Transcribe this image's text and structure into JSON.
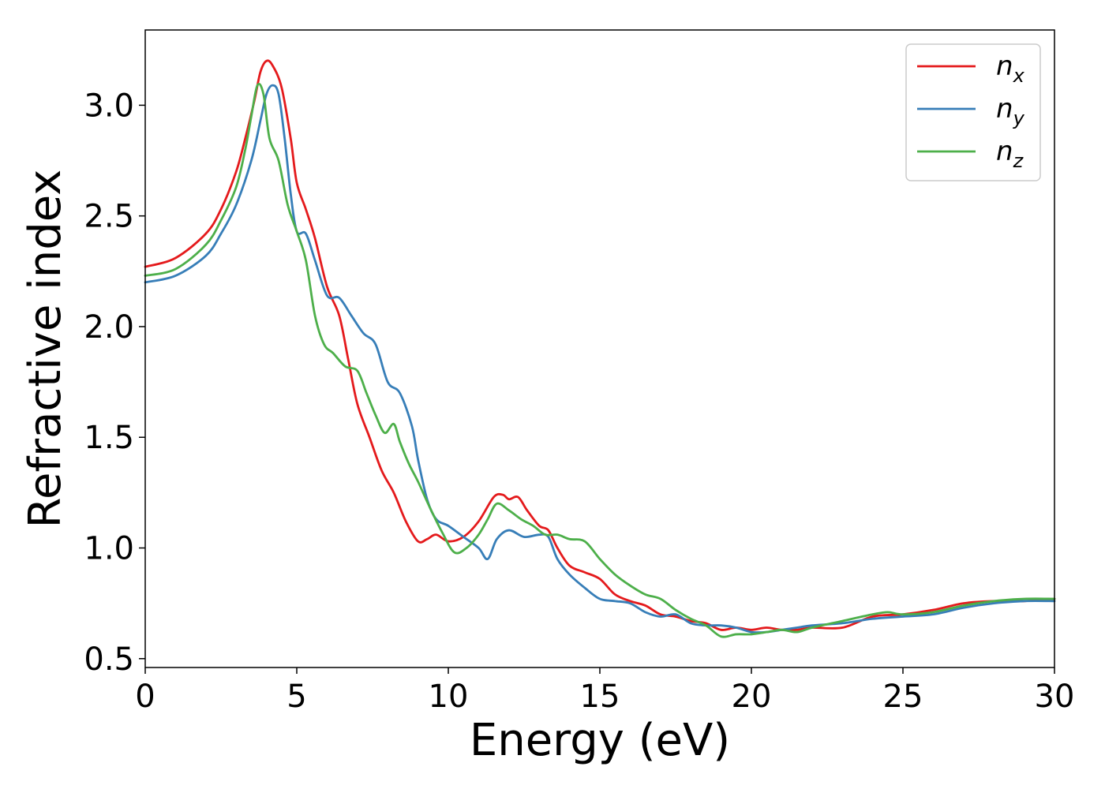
{
  "chart_data": {
    "type": "line",
    "title": "",
    "xlabel": "Energy (eV)",
    "ylabel": "Refractive index",
    "xlim": [
      0,
      30
    ],
    "ylim": [
      0.46,
      3.34
    ],
    "xticks": [
      0,
      5,
      10,
      15,
      20,
      25,
      30
    ],
    "xtick_labels": [
      "0",
      "5",
      "10",
      "15",
      "20",
      "25",
      "30"
    ],
    "yticks": [
      0.5,
      1.0,
      1.5,
      2.0,
      2.5,
      3.0
    ],
    "ytick_labels": [
      "0.5",
      "1.0",
      "1.5",
      "2.0",
      "2.5",
      "3.0"
    ],
    "grid": false,
    "legend_position": "top-right",
    "series": [
      {
        "name": "n_x",
        "legend_main": "n",
        "legend_sub": "x",
        "color": "#e41a1c",
        "x": [
          0,
          1,
          2,
          2.5,
          3,
          3.3,
          3.6,
          3.8,
          4.0,
          4.2,
          4.5,
          4.8,
          5.0,
          5.3,
          5.6,
          6.0,
          6.4,
          6.7,
          7.0,
          7.4,
          7.8,
          8.2,
          8.6,
          9.0,
          9.3,
          9.6,
          10.0,
          10.5,
          11.0,
          11.5,
          11.8,
          12.0,
          12.3,
          12.6,
          13.0,
          13.3,
          13.6,
          14.0,
          14.5,
          15.0,
          15.5,
          16.0,
          16.5,
          17.0,
          17.5,
          18.0,
          18.5,
          19.0,
          19.5,
          20.0,
          20.5,
          21.0,
          21.5,
          22.0,
          23.0,
          24.0,
          25.0,
          26.0,
          27.0,
          28.0,
          29.0,
          30.0
        ],
        "y": [
          2.27,
          2.31,
          2.42,
          2.53,
          2.7,
          2.85,
          3.02,
          3.15,
          3.2,
          3.18,
          3.08,
          2.85,
          2.65,
          2.53,
          2.4,
          2.18,
          2.05,
          1.85,
          1.65,
          1.5,
          1.35,
          1.25,
          1.12,
          1.03,
          1.04,
          1.06,
          1.03,
          1.05,
          1.12,
          1.23,
          1.24,
          1.22,
          1.23,
          1.17,
          1.1,
          1.08,
          1.0,
          0.92,
          0.89,
          0.86,
          0.79,
          0.76,
          0.74,
          0.7,
          0.69,
          0.67,
          0.66,
          0.63,
          0.64,
          0.63,
          0.64,
          0.63,
          0.63,
          0.64,
          0.64,
          0.69,
          0.7,
          0.72,
          0.75,
          0.76,
          0.76,
          0.77
        ]
      },
      {
        "name": "n_y",
        "legend_main": "n",
        "legend_sub": "y",
        "color": "#377eb8",
        "x": [
          0,
          1,
          2,
          2.5,
          3,
          3.5,
          3.8,
          4.0,
          4.2,
          4.4,
          4.6,
          4.8,
          5.0,
          5.3,
          5.6,
          6.0,
          6.4,
          6.8,
          7.2,
          7.6,
          8.0,
          8.4,
          8.8,
          9.0,
          9.3,
          9.6,
          10.0,
          10.5,
          11.0,
          11.3,
          11.6,
          12.0,
          12.5,
          13.0,
          13.3,
          13.6,
          14.0,
          14.5,
          15.0,
          15.5,
          16.0,
          16.5,
          17.0,
          17.5,
          18.0,
          18.5,
          19.0,
          19.5,
          20.0,
          20.5,
          21.0,
          21.5,
          22.0,
          23.0,
          24.0,
          25.0,
          26.0,
          27.0,
          28.0,
          29.0,
          30.0
        ],
        "y": [
          2.2,
          2.23,
          2.32,
          2.42,
          2.55,
          2.75,
          2.93,
          3.05,
          3.09,
          3.05,
          2.85,
          2.6,
          2.43,
          2.42,
          2.3,
          2.14,
          2.13,
          2.05,
          1.97,
          1.92,
          1.75,
          1.7,
          1.55,
          1.4,
          1.22,
          1.13,
          1.1,
          1.05,
          1.0,
          0.95,
          1.04,
          1.08,
          1.05,
          1.06,
          1.05,
          0.95,
          0.88,
          0.82,
          0.77,
          0.76,
          0.75,
          0.71,
          0.69,
          0.7,
          0.66,
          0.65,
          0.65,
          0.64,
          0.62,
          0.62,
          0.63,
          0.64,
          0.65,
          0.66,
          0.68,
          0.69,
          0.7,
          0.73,
          0.75,
          0.76,
          0.76
        ]
      },
      {
        "name": "n_z",
        "legend_main": "n",
        "legend_sub": "z",
        "color": "#4daf4a",
        "x": [
          0,
          1,
          2,
          2.5,
          3,
          3.3,
          3.5,
          3.7,
          3.9,
          4.1,
          4.4,
          4.7,
          5.0,
          5.3,
          5.6,
          5.9,
          6.2,
          6.6,
          7.0,
          7.3,
          7.6,
          7.9,
          8.2,
          8.4,
          8.7,
          9.0,
          9.4,
          9.8,
          10.2,
          10.6,
          11.0,
          11.3,
          11.6,
          12.0,
          12.4,
          12.8,
          13.2,
          13.6,
          14.0,
          14.5,
          15.0,
          15.5,
          16.0,
          16.5,
          17.0,
          17.5,
          18.0,
          18.5,
          19.0,
          19.5,
          20.0,
          20.5,
          21.0,
          21.5,
          22.0,
          23.0,
          24.0,
          24.5,
          25.0,
          26.0,
          27.0,
          28.0,
          29.0,
          30.0
        ],
        "y": [
          2.23,
          2.26,
          2.37,
          2.48,
          2.63,
          2.8,
          2.95,
          3.09,
          3.05,
          2.85,
          2.75,
          2.55,
          2.43,
          2.3,
          2.05,
          1.92,
          1.88,
          1.82,
          1.8,
          1.7,
          1.6,
          1.52,
          1.56,
          1.48,
          1.38,
          1.3,
          1.18,
          1.07,
          0.98,
          1.0,
          1.06,
          1.13,
          1.2,
          1.17,
          1.13,
          1.1,
          1.06,
          1.06,
          1.04,
          1.03,
          0.95,
          0.88,
          0.83,
          0.79,
          0.77,
          0.72,
          0.68,
          0.65,
          0.6,
          0.61,
          0.61,
          0.62,
          0.63,
          0.62,
          0.64,
          0.67,
          0.7,
          0.71,
          0.7,
          0.71,
          0.74,
          0.76,
          0.77,
          0.77
        ]
      }
    ]
  }
}
